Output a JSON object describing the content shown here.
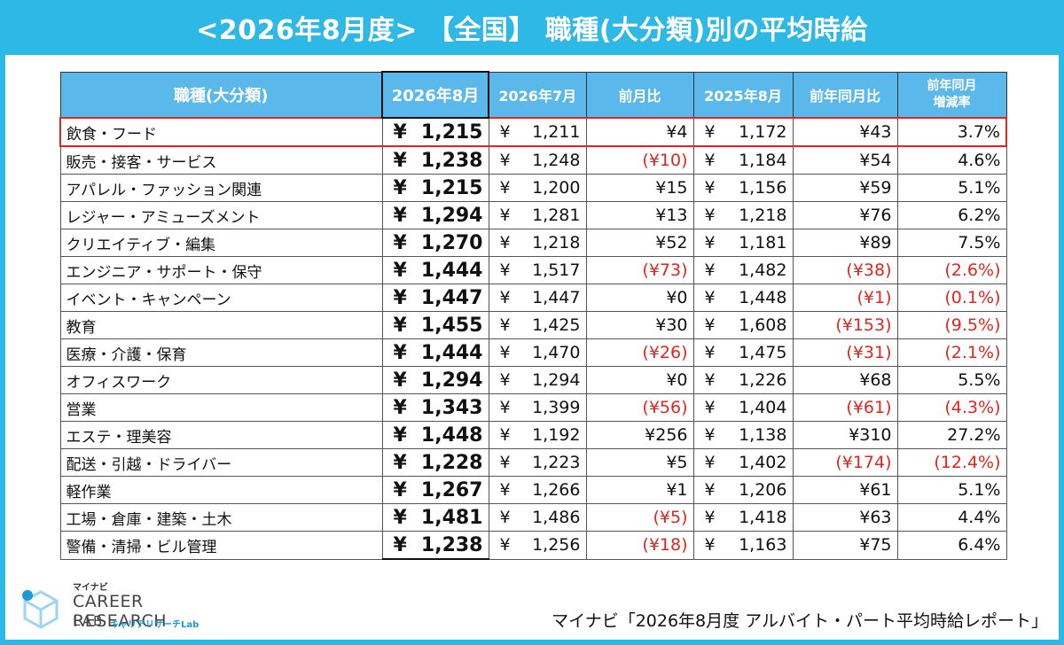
{
  "title": "<2026年8月度> 【全国】 職種(大分類)別の平均時給",
  "table": {
    "headers": [
      "職種(大分類)",
      "2026年8月",
      "2026年7月",
      "前月比",
      "2025年8月",
      "前年同月比"
    ],
    "header_last_line1": "前年同月",
    "header_last_line2": "増減率",
    "yen_symbol": "¥",
    "highlight_row": "飲食・フード",
    "rows": [
      {
        "name": "飲食・フード",
        "aug26": "1,215",
        "jul26": "1,211",
        "mom": "¥4",
        "aug25": "1,172",
        "yoy": "¥43",
        "rate": "3.7%",
        "mom_neg": false,
        "yoy_neg": false
      },
      {
        "name": "販売・接客・サービス",
        "aug26": "1,238",
        "jul26": "1,248",
        "mom": "(¥10)",
        "aug25": "1,184",
        "yoy": "¥54",
        "rate": "4.6%",
        "mom_neg": true,
        "yoy_neg": false
      },
      {
        "name": "アパレル・ファッション関連",
        "aug26": "1,215",
        "jul26": "1,200",
        "mom": "¥15",
        "aug25": "1,156",
        "yoy": "¥59",
        "rate": "5.1%",
        "mom_neg": false,
        "yoy_neg": false
      },
      {
        "name": "レジャー・アミューズメント",
        "aug26": "1,294",
        "jul26": "1,281",
        "mom": "¥13",
        "aug25": "1,218",
        "yoy": "¥76",
        "rate": "6.2%",
        "mom_neg": false,
        "yoy_neg": false
      },
      {
        "name": "クリエイティブ・編集",
        "aug26": "1,270",
        "jul26": "1,218",
        "mom": "¥52",
        "aug25": "1,181",
        "yoy": "¥89",
        "rate": "7.5%",
        "mom_neg": false,
        "yoy_neg": false
      },
      {
        "name": "エンジニア・サポート・保守",
        "aug26": "1,444",
        "jul26": "1,517",
        "mom": "(¥73)",
        "aug25": "1,482",
        "yoy": "(¥38)",
        "rate": "(2.6%)",
        "mom_neg": true,
        "yoy_neg": true
      },
      {
        "name": "イベント・キャンペーン",
        "aug26": "1,447",
        "jul26": "1,447",
        "mom": "¥0",
        "aug25": "1,448",
        "yoy": "(¥1)",
        "rate": "(0.1%)",
        "mom_neg": false,
        "yoy_neg": true
      },
      {
        "name": "教育",
        "aug26": "1,455",
        "jul26": "1,425",
        "mom": "¥30",
        "aug25": "1,608",
        "yoy": "(¥153)",
        "rate": "(9.5%)",
        "mom_neg": false,
        "yoy_neg": true
      },
      {
        "name": "医療・介護・保育",
        "aug26": "1,444",
        "jul26": "1,470",
        "mom": "(¥26)",
        "aug25": "1,475",
        "yoy": "(¥31)",
        "rate": "(2.1%)",
        "mom_neg": true,
        "yoy_neg": true
      },
      {
        "name": "オフィスワーク",
        "aug26": "1,294",
        "jul26": "1,294",
        "mom": "¥0",
        "aug25": "1,226",
        "yoy": "¥68",
        "rate": "5.5%",
        "mom_neg": false,
        "yoy_neg": false
      },
      {
        "name": "営業",
        "aug26": "1,343",
        "jul26": "1,399",
        "mom": "(¥56)",
        "aug25": "1,404",
        "yoy": "(¥61)",
        "rate": "(4.3%)",
        "mom_neg": true,
        "yoy_neg": true
      },
      {
        "name": "エステ・理美容",
        "aug26": "1,448",
        "jul26": "1,192",
        "mom": "¥256",
        "aug25": "1,138",
        "yoy": "¥310",
        "rate": "27.2%",
        "mom_neg": false,
        "yoy_neg": false
      },
      {
        "name": "配送・引越・ドライバー",
        "aug26": "1,228",
        "jul26": "1,223",
        "mom": "¥5",
        "aug25": "1,402",
        "yoy": "(¥174)",
        "rate": "(12.4%)",
        "mom_neg": false,
        "yoy_neg": true
      },
      {
        "name": "軽作業",
        "aug26": "1,267",
        "jul26": "1,266",
        "mom": "¥1",
        "aug25": "1,206",
        "yoy": "¥61",
        "rate": "5.1%",
        "mom_neg": false,
        "yoy_neg": false
      },
      {
        "name": "工場・倉庫・建築・土木",
        "aug26": "1,481",
        "jul26": "1,486",
        "mom": "(¥5)",
        "aug25": "1,418",
        "yoy": "¥63",
        "rate": "4.4%",
        "mom_neg": true,
        "yoy_neg": false
      },
      {
        "name": "警備・清掃・ビル管理",
        "aug26": "1,238",
        "jul26": "1,256",
        "mom": "(¥18)",
        "aug25": "1,163",
        "yoy": "¥75",
        "rate": "6.4%",
        "mom_neg": true,
        "yoy_neg": false
      }
    ]
  },
  "colors": {
    "accent": "#2eb8e6",
    "header_bg": "#5bb8ea",
    "negative": "#e0271e"
  },
  "logo": {
    "small_text": "マイナビ",
    "line1": "CAREER RESEARCH",
    "line2": "LAB",
    "line3": "キャリアリサーチLab"
  },
  "source": "マイナビ「2026年8月度 アルバイト・パート平均時給レポート」"
}
